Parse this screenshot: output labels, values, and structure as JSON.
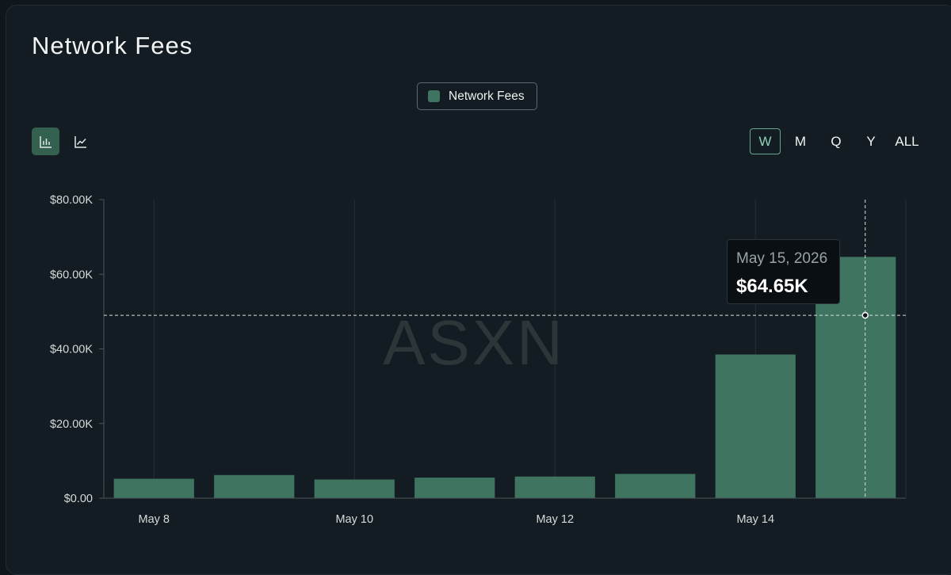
{
  "header": {
    "title": "Network Fees"
  },
  "legend": {
    "label": "Network Fees",
    "color": "#3f7560"
  },
  "view_toggle": [
    {
      "name": "bar-chart-view-button",
      "icon": "bar-chart-icon",
      "active": true
    },
    {
      "name": "line-chart-view-button",
      "icon": "line-chart-icon",
      "active": false
    }
  ],
  "time_ranges": [
    {
      "label": "W",
      "active": true
    },
    {
      "label": "M",
      "active": false
    },
    {
      "label": "Q",
      "active": false
    },
    {
      "label": "Y",
      "active": false
    },
    {
      "label": "ALL",
      "active": false
    }
  ],
  "watermark": "ASXN",
  "tooltip": {
    "date": "May 15, 2026",
    "value": "$64.65K"
  },
  "crosshair": {
    "x": "2026-05-15",
    "y": 49000
  },
  "chart_data": {
    "type": "bar",
    "title": "Network Fees",
    "categories": [
      "2026-05-08",
      "2026-05-09",
      "2026-05-10",
      "2026-05-11",
      "2026-05-12",
      "2026-05-13",
      "2026-05-14",
      "2026-05-15"
    ],
    "series": [
      {
        "name": "Network Fees",
        "color": "#3f7560",
        "values": [
          5200,
          6200,
          5000,
          5500,
          5800,
          6500,
          38500,
          64650
        ]
      }
    ],
    "xtick_labels": [
      {
        "category": "2026-05-08",
        "label": "May 8"
      },
      {
        "category": "2026-05-10",
        "label": "May 10"
      },
      {
        "category": "2026-05-12",
        "label": "May 12"
      },
      {
        "category": "2026-05-14",
        "label": "May 14"
      }
    ],
    "yticks": [
      0,
      20000,
      40000,
      60000,
      80000
    ],
    "ytick_labels": [
      "$0.00",
      "$20.00K",
      "$40.00K",
      "$60.00K",
      "$80.00K"
    ],
    "ylim": [
      0,
      80000
    ],
    "grid": "vertical",
    "legend_position": "top-center"
  }
}
